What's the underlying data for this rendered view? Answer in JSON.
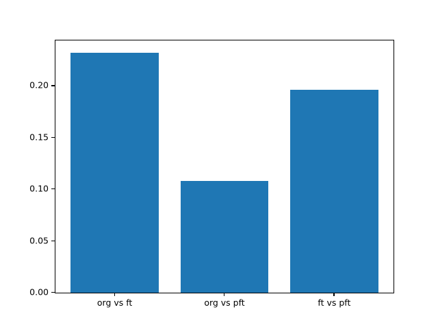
{
  "figure": {
    "background": "#ffffff",
    "spine_color": "#000000",
    "text_color": "#000000"
  },
  "chart_data": {
    "type": "bar",
    "title": "",
    "xlabel": "",
    "ylabel": "",
    "categories": [
      "org vs ft",
      "org vs pft",
      "ft vs pft"
    ],
    "values": [
      0.232,
      0.108,
      0.196
    ],
    "bar_color": "#1f77b4",
    "bar_width_fraction": 0.8,
    "x_margin_fraction": 0.54,
    "ylim": [
      0,
      0.244
    ],
    "yticks": [
      0.0,
      0.05,
      0.1,
      0.15,
      0.2
    ],
    "ytick_labels": [
      "0.00",
      "0.05",
      "0.10",
      "0.15",
      "0.20"
    ],
    "grid": false,
    "legend": null
  }
}
